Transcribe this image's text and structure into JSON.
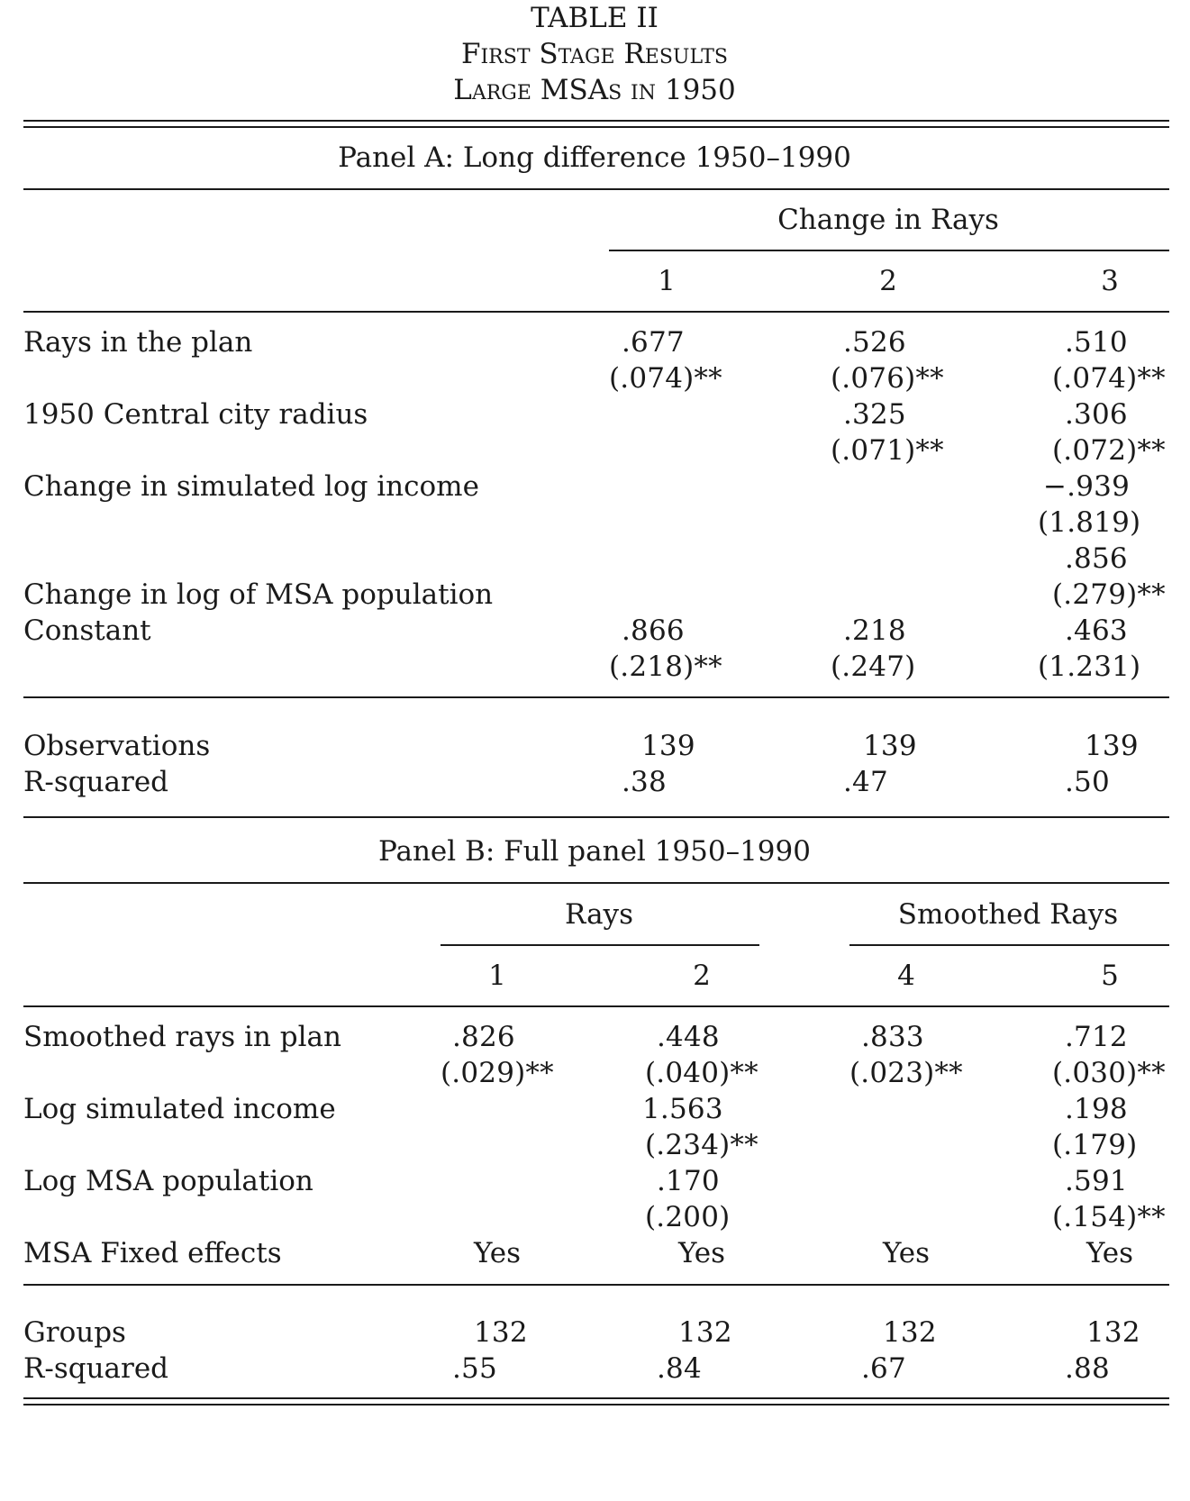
{
  "title": "TABLE II",
  "subtitle1": "First Stage Results",
  "subtitle2": "Large MSAs in 1950",
  "panelA": {
    "heading": "Panel A: Long difference 1950–1990",
    "group_header": "Change in Rays",
    "columns": [
      "1",
      "2",
      "3"
    ],
    "rows": [
      {
        "label": "Rays in the plan",
        "coef": [
          ".677",
          ".526",
          ".510"
        ],
        "se": [
          "(.074)**",
          "(.076)**",
          "(.074)**"
        ]
      },
      {
        "label": "1950 Central city radius",
        "coef": [
          "",
          ".325",
          ".306"
        ],
        "se": [
          "",
          "(.071)**",
          "(.072)**"
        ]
      },
      {
        "label": "Change in simulated log income",
        "coef": [
          "",
          "",
          "−.939"
        ],
        "se": [
          "",
          "",
          "(1.819)"
        ]
      },
      {
        "label": "Change in log of MSA population",
        "coef": [
          "",
          "",
          ".856"
        ],
        "se": [
          "",
          "",
          "(.279)**"
        ]
      },
      {
        "label": "Constant",
        "coef": [
          ".866",
          ".218",
          ".463"
        ],
        "se": [
          "(.218)**",
          "(.247)",
          "(1.231)"
        ]
      }
    ],
    "stats": [
      {
        "label": "Observations",
        "values": [
          "139",
          "139",
          "139"
        ]
      },
      {
        "label": "R-squared",
        "values": [
          ".38",
          ".47",
          ".50"
        ]
      }
    ]
  },
  "panelB": {
    "heading": "Panel B: Full panel 1950–1990",
    "group_headers": [
      "Rays",
      "Smoothed Rays"
    ],
    "columns": [
      "1",
      "2",
      "4",
      "5"
    ],
    "rows": [
      {
        "label": "Smoothed rays in plan",
        "coef": [
          ".826",
          ".448",
          ".833",
          ".712"
        ],
        "se": [
          "(.029)**",
          "(.040)**",
          "(.023)**",
          "(.030)**"
        ]
      },
      {
        "label": "Log simulated income",
        "coef": [
          "",
          "1.563",
          "",
          ".198"
        ],
        "se": [
          "",
          "(.234)**",
          "",
          "(.179)"
        ]
      },
      {
        "label": "Log MSA population",
        "coef": [
          "",
          ".170",
          "",
          ".591"
        ],
        "se": [
          "",
          "(.200)",
          "",
          "(.154)**"
        ]
      }
    ],
    "fixed_effects": {
      "label": "MSA Fixed effects",
      "values": [
        "Yes",
        "Yes",
        "Yes",
        "Yes"
      ]
    },
    "stats": [
      {
        "label": "Groups",
        "values": [
          "132",
          "132",
          "132",
          "132"
        ]
      },
      {
        "label": "R-squared",
        "values": [
          ".55",
          ".84",
          ".67",
          ".88"
        ]
      }
    ]
  }
}
